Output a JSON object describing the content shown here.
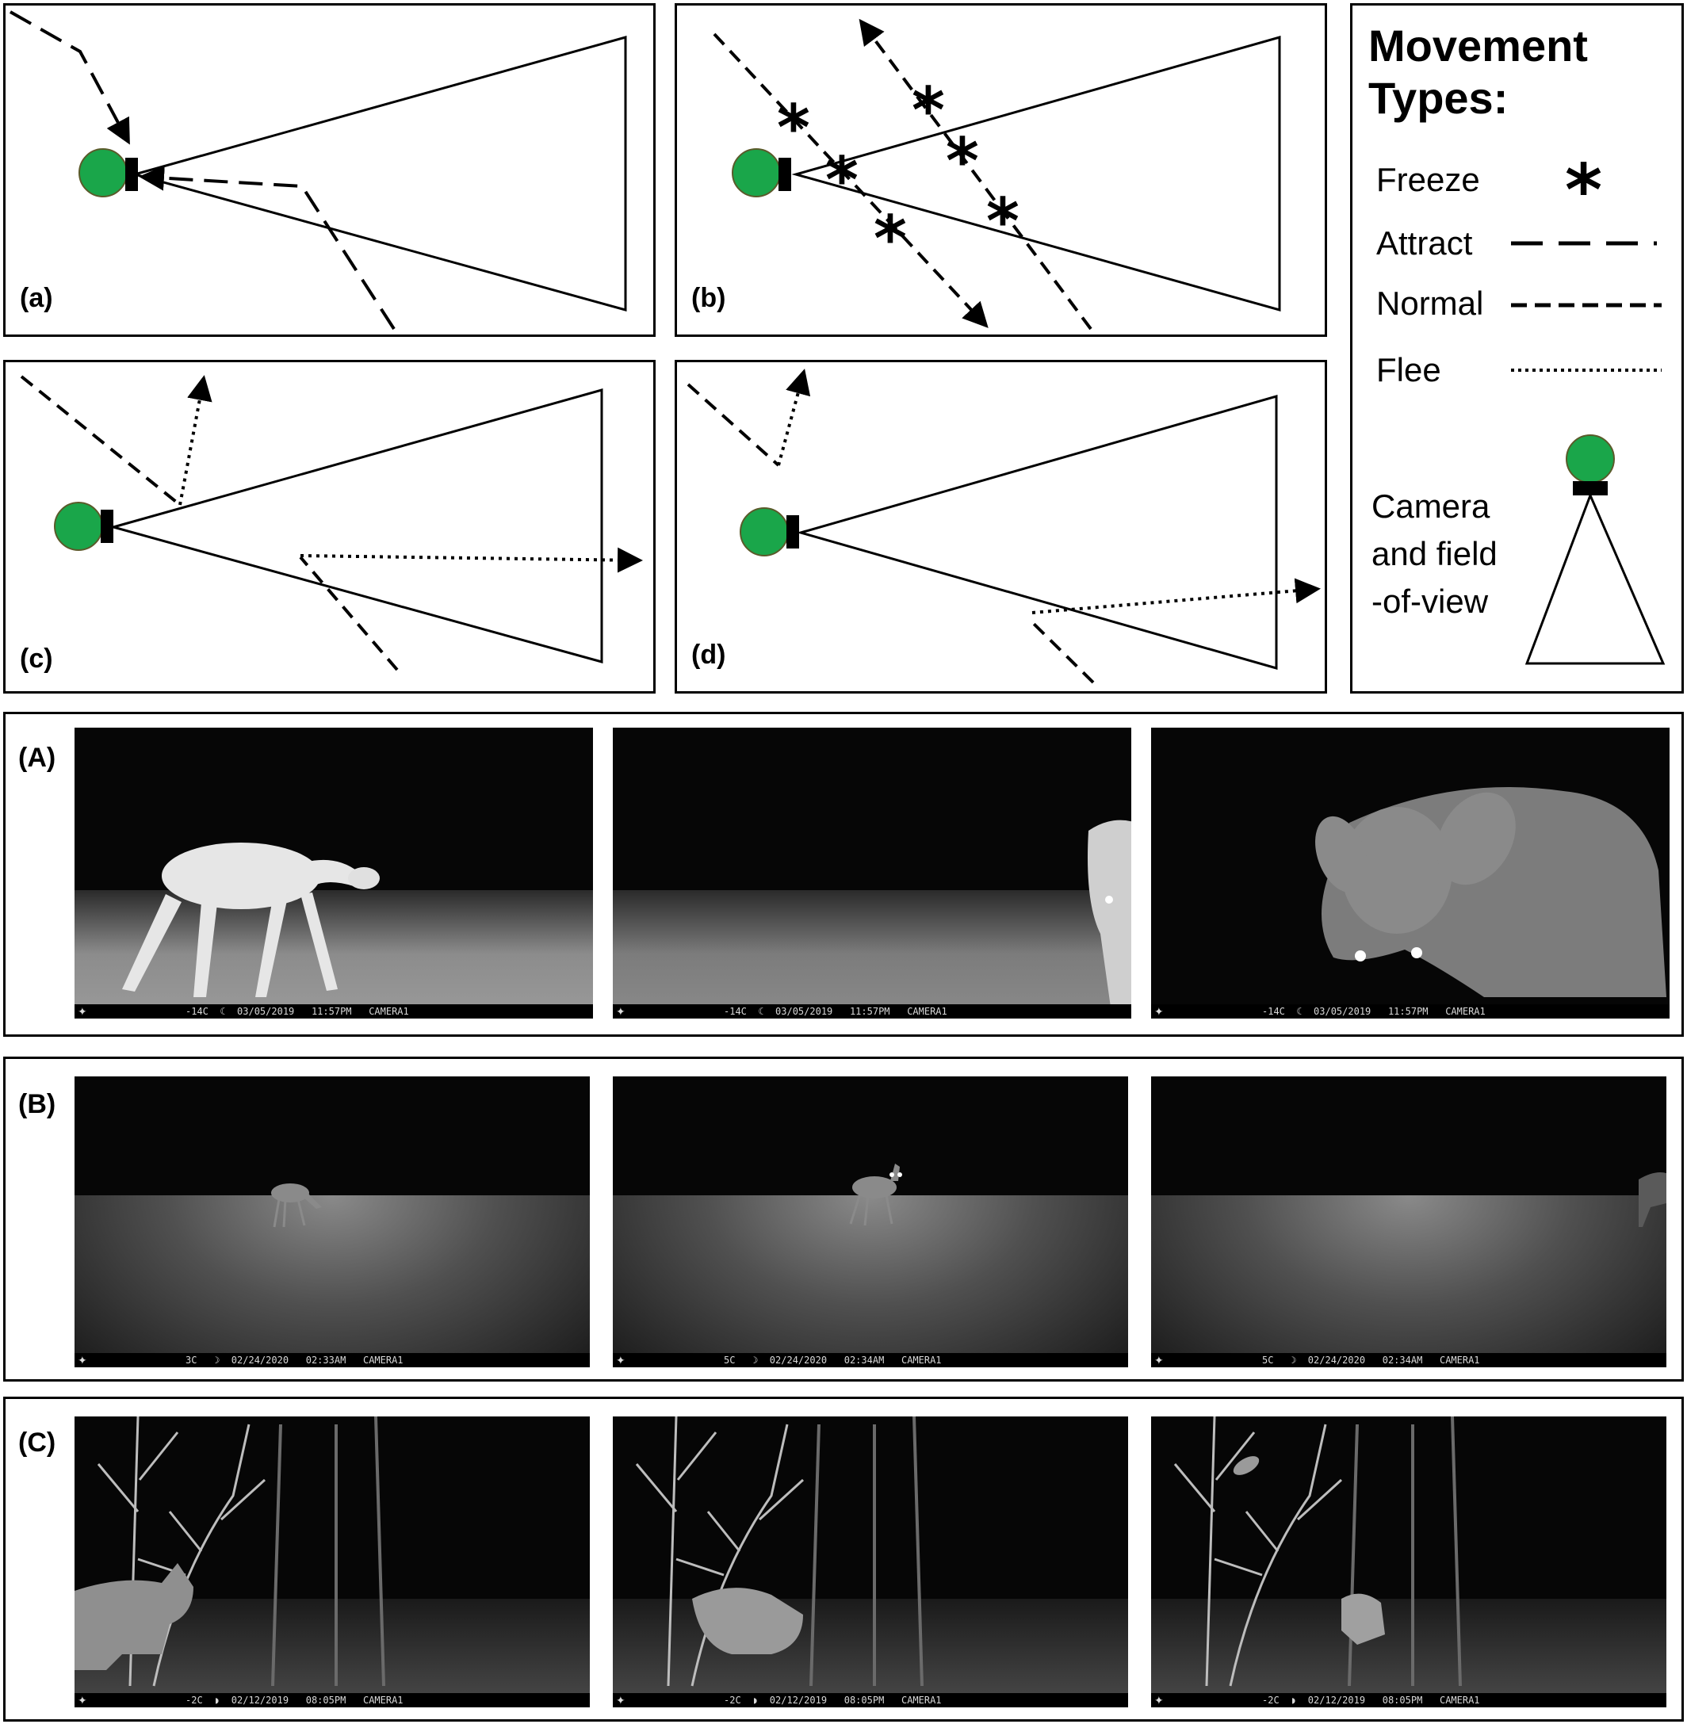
{
  "diagram": {
    "panels": [
      {
        "label": "(a)"
      },
      {
        "label": "(b)"
      },
      {
        "label": "(c)"
      },
      {
        "label": "(d)"
      }
    ],
    "legend": {
      "title_line1": "Movement",
      "title_line2": "Types:",
      "items": [
        {
          "label": "Freeze",
          "symbol": "asterisk"
        },
        {
          "label": "Attract",
          "symbol": "long-dash"
        },
        {
          "label": "Normal",
          "symbol": "short-dash"
        },
        {
          "label": "Flee",
          "symbol": "dotted"
        }
      ],
      "camera_line1": "Camera",
      "camera_line2": "and field",
      "camera_line3": "-of-view",
      "camera_color": "#1aa64a"
    }
  },
  "photo_rows": [
    {
      "label": "(A)",
      "photos": [
        {
          "stamp": "-14C  ☾  03/05/2019   11:57PM   CAMERA1"
        },
        {
          "stamp": "-14C  ☾  03/05/2019   11:57PM   CAMERA1"
        },
        {
          "stamp": "-14C  ☾  03/05/2019   11:57PM   CAMERA1"
        }
      ]
    },
    {
      "label": "(B)",
      "photos": [
        {
          "stamp": "3C   ☽  02/24/2020   02:33AM   CAMERA1"
        },
        {
          "stamp": "5C   ☽  02/24/2020   02:34AM   CAMERA1"
        },
        {
          "stamp": "5C   ☽  02/24/2020   02:34AM   CAMERA1"
        }
      ]
    },
    {
      "label": "(C)",
      "photos": [
        {
          "stamp": "-2C  ◗  02/12/2019   08:05PM   CAMERA1"
        },
        {
          "stamp": "-2C  ◗  02/12/2019   08:05PM   CAMERA1"
        },
        {
          "stamp": "-2C  ◗  02/12/2019   08:05PM   CAMERA1"
        }
      ]
    }
  ]
}
